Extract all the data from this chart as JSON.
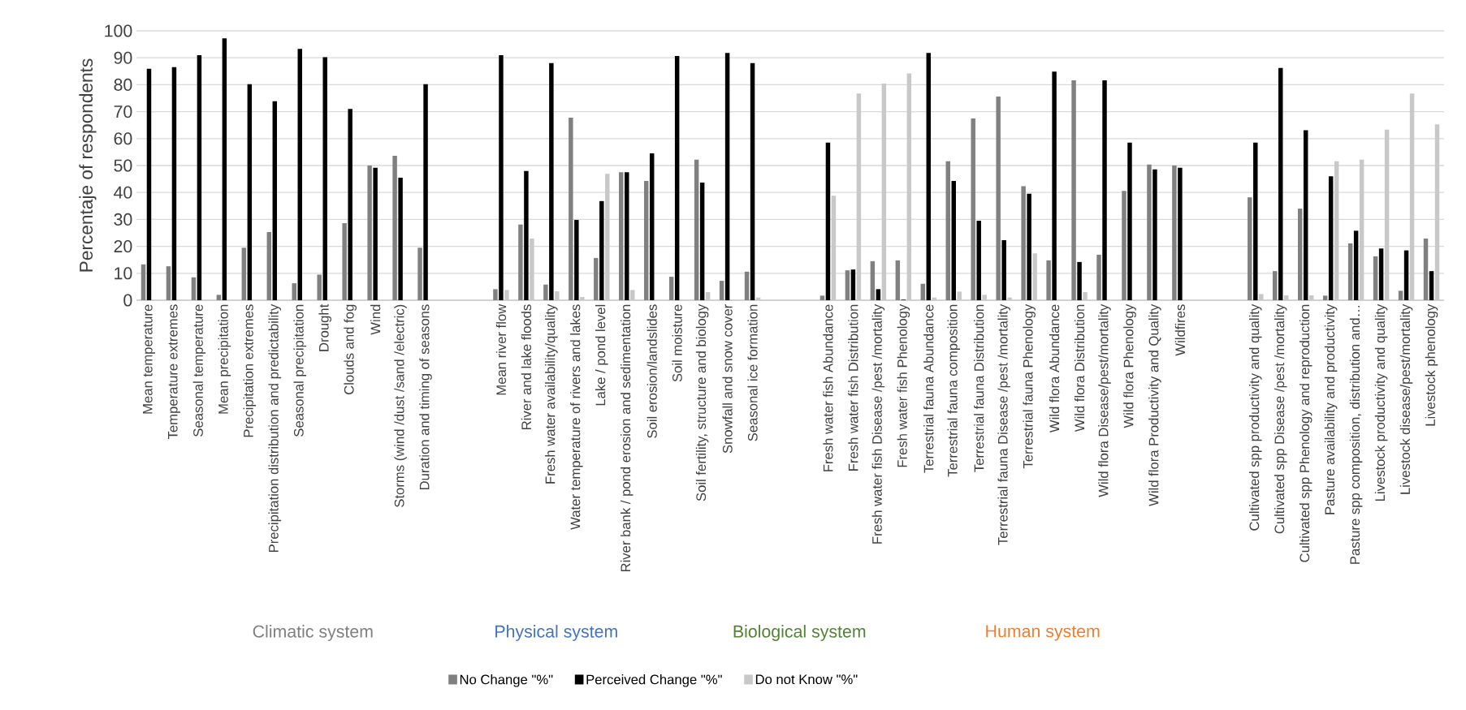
{
  "chart_data": {
    "type": "bar",
    "ylabel": "Percentaje of respondents",
    "categories": [
      "Mean temperature",
      "Temperature extremes",
      "Seasonal temperature",
      "Mean precipitation",
      "Precipitation extremes",
      "Precipitation distribution and predictability",
      "Seasonal precipitation",
      "Drought",
      "Clouds and fog",
      "Wind",
      "Storms (wind /dust /sand /electric)",
      "Duration and timing of seasons",
      null,
      null,
      "Mean river flow",
      "River and lake floods",
      "Fresh water availability/quality",
      "Water temperature of rivers and lakes",
      "Lake / pond level",
      "River bank / pond erosion and sedimentation",
      "Soil erosion/landslides",
      "Soil moisture",
      "Soil fertility, structure and biology",
      "Snowfall and snow cover",
      "Seasonal ice formation",
      null,
      null,
      "Fresh water fish Abundance",
      "Fresh water fish Distribution",
      "Fresh water fish Disease /pest /mortality",
      "Fresh water fish Phenology",
      "Terrestrial fauna Abundance",
      "Terrestrial fauna composition",
      "Terrestrial fauna Distribution",
      "Terrestrial fauna Disease /pest /mortality",
      "Terrestrial fauna Phenology",
      "Wild flora Abundance",
      "Wild flora Distribution",
      "Wild flora Disease/pest/mortality",
      "Wild flora Phenology",
      "Wild flora Productivity and Quality",
      "Wildfires",
      null,
      null,
      "Cultivated spp productivity and quality",
      "Cultivated spp Disease /pest /mortality",
      "Cultivated spp Phenology and reproduction",
      "Pasture availability and  productivity",
      "Pasture spp composition, distribution and…",
      "Livestock productivity and quality",
      "Livestock disease/pest/mortality",
      "Livestock phenology"
    ],
    "series": [
      {
        "name": "No Change \"%\"",
        "color": "#808080",
        "values": [
          13.3,
          12.6,
          8.5,
          2,
          19.5,
          25.3,
          6.3,
          9.5,
          28.6,
          50,
          53.6,
          19.5,
          null,
          null,
          4.1,
          28.1,
          5.8,
          67.8,
          15.7,
          47.5,
          44.3,
          8.7,
          52.2,
          7.2,
          10.6,
          null,
          null,
          1.7,
          11.1,
          14.5,
          14.8,
          6.1,
          51.6,
          67.5,
          75.6,
          42.3,
          14.8,
          81.6,
          16.9,
          40.6,
          50.4,
          50,
          null,
          null,
          38.2,
          10.8,
          34,
          1.7,
          21.1,
          16.3,
          3.5,
          22.9
        ]
      },
      {
        "name": "Perceived Change \"%\"",
        "color": "#000000",
        "values": [
          85.9,
          86.5,
          91,
          97.2,
          80.2,
          73.9,
          93.3,
          90.2,
          71,
          49.2,
          45.5,
          80.2,
          null,
          null,
          91,
          48,
          88,
          29.8,
          36.8,
          47.5,
          54.5,
          90.7,
          43.7,
          91.8,
          88,
          null,
          null,
          58.5,
          11.4,
          4.1,
          0.2,
          91.8,
          44.3,
          29.5,
          22.3,
          39.5,
          84.9,
          14.2,
          81.6,
          58.5,
          48.6,
          49.2,
          null,
          null,
          58.5,
          86.2,
          63.1,
          46,
          25.8,
          19.2,
          18.5,
          10.8
        ]
      },
      {
        "name": "Do not Know \"%\"",
        "color": "#c8c8c8",
        "values": [
          0,
          0,
          0,
          0,
          0,
          0,
          0,
          0,
          0,
          0,
          0,
          0,
          null,
          null,
          3.8,
          22.9,
          3.3,
          1.2,
          46.9,
          3.8,
          0,
          0,
          3,
          0,
          1,
          null,
          null,
          38.8,
          76.7,
          80.4,
          84.2,
          1,
          3.2,
          2,
          1,
          17.4,
          0,
          3,
          0,
          0,
          0,
          0,
          null,
          null,
          2.3,
          1.8,
          1.8,
          51.6,
          52.2,
          63.3,
          76.7,
          65.3
        ]
      }
    ],
    "ylim": [
      0,
      100
    ],
    "yticks": [
      0,
      10,
      20,
      30,
      40,
      50,
      60,
      70,
      80,
      90,
      100
    ],
    "grid": "y",
    "legend": "bottom",
    "annotations": [
      "Climatic system",
      "Physical system",
      "Biological system",
      "Human system"
    ]
  }
}
